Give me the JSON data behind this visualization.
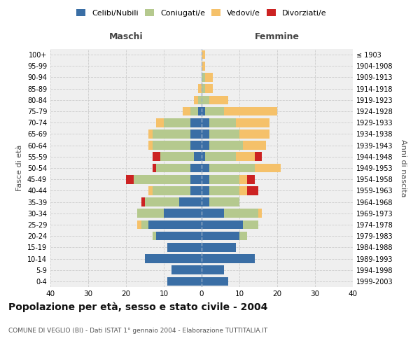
{
  "age_groups": [
    "0-4",
    "5-9",
    "10-14",
    "15-19",
    "20-24",
    "25-29",
    "30-34",
    "35-39",
    "40-44",
    "45-49",
    "50-54",
    "55-59",
    "60-64",
    "65-69",
    "70-74",
    "75-79",
    "80-84",
    "85-89",
    "90-94",
    "95-99",
    "100+"
  ],
  "birth_years": [
    "1999-2003",
    "1994-1998",
    "1989-1993",
    "1984-1988",
    "1979-1983",
    "1974-1978",
    "1969-1973",
    "1964-1968",
    "1959-1963",
    "1954-1958",
    "1949-1953",
    "1944-1948",
    "1939-1943",
    "1934-1938",
    "1929-1933",
    "1924-1928",
    "1919-1923",
    "1914-1918",
    "1909-1913",
    "1904-1908",
    "≤ 1903"
  ],
  "maschi": {
    "celibi": [
      9,
      8,
      15,
      9,
      12,
      14,
      10,
      6,
      3,
      3,
      3,
      2,
      3,
      3,
      3,
      1,
      0,
      0,
      0,
      0,
      0
    ],
    "coniugati": [
      0,
      0,
      0,
      0,
      1,
      2,
      7,
      9,
      10,
      15,
      9,
      9,
      10,
      10,
      7,
      2,
      1,
      0,
      0,
      0,
      0
    ],
    "vedovi": [
      0,
      0,
      0,
      0,
      0,
      1,
      0,
      0,
      1,
      0,
      0,
      0,
      1,
      1,
      2,
      2,
      1,
      1,
      0,
      0,
      0
    ],
    "divorziati": [
      0,
      0,
      0,
      0,
      0,
      0,
      0,
      1,
      0,
      2,
      1,
      2,
      0,
      0,
      0,
      0,
      0,
      0,
      0,
      0,
      0
    ]
  },
  "femmine": {
    "nubili": [
      7,
      6,
      14,
      9,
      10,
      11,
      6,
      2,
      2,
      2,
      2,
      1,
      2,
      2,
      2,
      1,
      0,
      0,
      0,
      0,
      0
    ],
    "coniugate": [
      0,
      0,
      0,
      0,
      2,
      4,
      9,
      8,
      8,
      8,
      12,
      8,
      9,
      8,
      7,
      5,
      2,
      1,
      1,
      0,
      0
    ],
    "vedove": [
      0,
      0,
      0,
      0,
      0,
      0,
      1,
      0,
      2,
      2,
      7,
      5,
      6,
      8,
      9,
      14,
      5,
      2,
      2,
      1,
      1
    ],
    "divorziate": [
      0,
      0,
      0,
      0,
      0,
      0,
      0,
      0,
      3,
      2,
      0,
      2,
      0,
      0,
      0,
      0,
      0,
      0,
      0,
      0,
      0
    ]
  },
  "color_celibi": "#3a6ea5",
  "color_coniugati": "#b5c98e",
  "color_vedovi": "#f5c16a",
  "color_divorziati": "#cc2222",
  "title_main": "Popolazione per età, sesso e stato civile - 2004",
  "subtitle": "COMUNE DI VEGLIO (BI) - Dati ISTAT 1° gennaio 2004 - Elaborazione TUTTITALIA.IT",
  "xlabel_left": "Maschi",
  "xlabel_right": "Femmine",
  "ylabel_left": "Fasce di età",
  "ylabel_right": "Anni di nascita",
  "xlim": 40,
  "bg_color": "#ffffff",
  "plot_bg_color": "#efefef",
  "grid_color": "#cccccc"
}
